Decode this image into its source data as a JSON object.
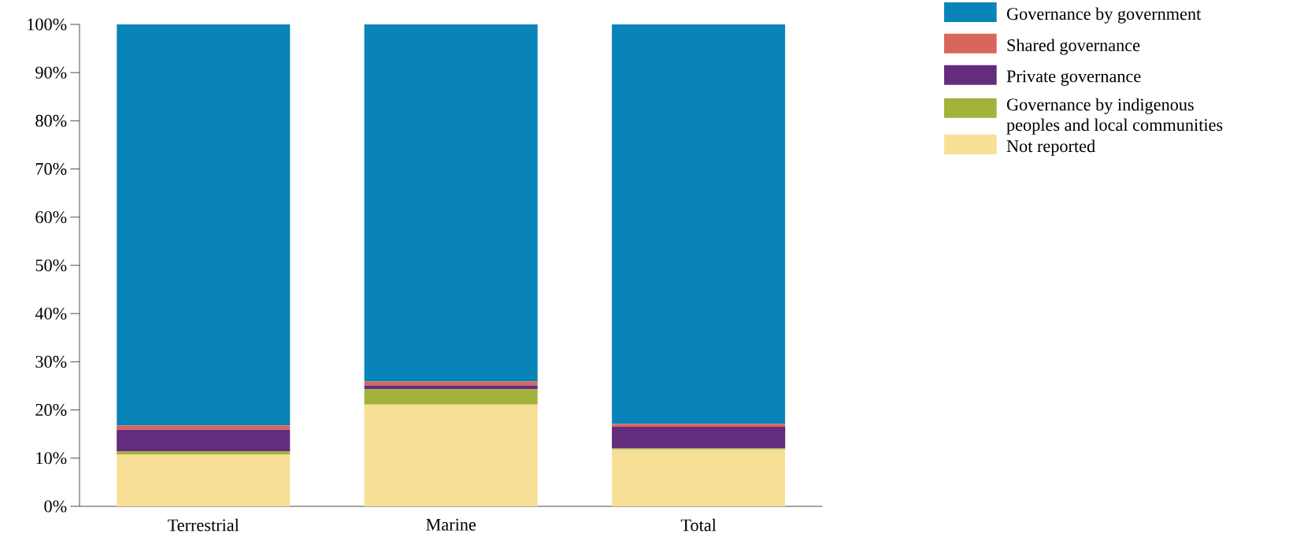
{
  "chart_data": {
    "type": "bar",
    "stacked": true,
    "categories": [
      "Terrestrial",
      "Marine",
      "Total"
    ],
    "series": [
      {
        "name": "Not reported",
        "color": "#f7e096",
        "values": [
          10.8,
          21.1,
          11.8
        ]
      },
      {
        "name": "Governance by indigenous peoples and local communities",
        "color": "#a3b23a",
        "values": [
          0.6,
          3.2,
          0.2
        ]
      },
      {
        "name": "Private governance",
        "color": "#632c7c",
        "values": [
          4.5,
          0.8,
          4.5
        ]
      },
      {
        "name": "Shared governance",
        "color": "#d8665c",
        "values": [
          0.9,
          0.8,
          0.6
        ]
      },
      {
        "name": "Governance by government",
        "color": "#0884b8",
        "values": [
          83.2,
          74.1,
          82.9
        ]
      }
    ],
    "ylim": [
      0,
      100
    ],
    "yticks": [
      {
        "value": 0,
        "label": "0%"
      },
      {
        "value": 10,
        "label": "10%"
      },
      {
        "value": 20,
        "label": "20%"
      },
      {
        "value": 30,
        "label": "30%"
      },
      {
        "value": 40,
        "label": "40%"
      },
      {
        "value": 50,
        "label": "50%"
      },
      {
        "value": 60,
        "label": "60%"
      },
      {
        "value": 70,
        "label": "70%"
      },
      {
        "value": 80,
        "label": "80%"
      },
      {
        "value": 90,
        "label": "90%"
      },
      {
        "value": 100,
        "label": "100%"
      }
    ],
    "grid": false,
    "legend": "top right"
  }
}
